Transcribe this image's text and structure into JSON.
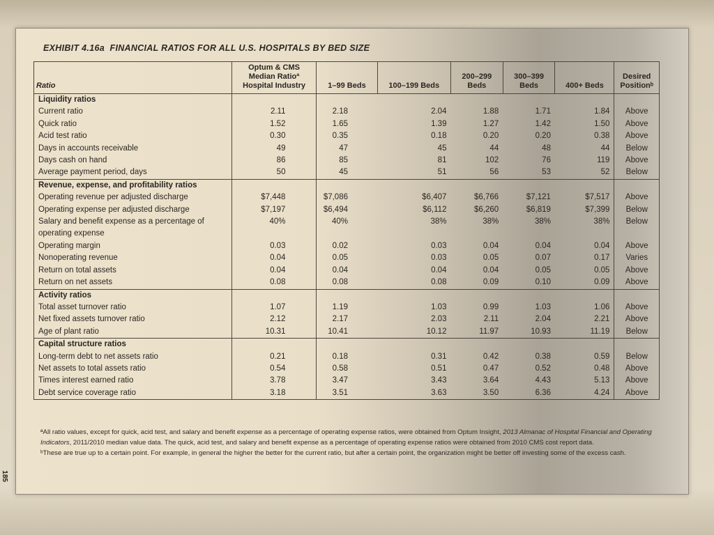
{
  "exhibit": {
    "label": "EXHIBIT 4.16a",
    "title": "FINANCIAL RATIOS FOR ALL U.S. HOSPITALS BY BED SIZE"
  },
  "columns": {
    "ratio": "Ratio",
    "optum": "Optum & CMS Median Ratioª Hospital Industry",
    "c1": "1–99 Beds",
    "c2": "100–199 Beds",
    "c3": "200–299 Beds",
    "c4": "300–399 Beds",
    "c5": "400+ Beds",
    "desired": "Desired Positionᵇ"
  },
  "sections": [
    {
      "title": "Liquidity ratios",
      "rows": [
        {
          "label": "Current ratio",
          "values": [
            "2.11",
            "2.18",
            "2.04",
            "1.88",
            "1.71",
            "1.84"
          ],
          "desired": "Above"
        },
        {
          "label": "Quick ratio",
          "values": [
            "1.52",
            "1.65",
            "1.39",
            "1.27",
            "1.42",
            "1.50"
          ],
          "desired": "Above"
        },
        {
          "label": "Acid test ratio",
          "values": [
            "0.30",
            "0.35",
            "0.18",
            "0.20",
            "0.20",
            "0.38"
          ],
          "desired": "Above"
        },
        {
          "label": "Days in accounts receivable",
          "values": [
            "49",
            "47",
            "45",
            "44",
            "48",
            "44"
          ],
          "desired": "Below"
        },
        {
          "label": "Days cash on hand",
          "values": [
            "86",
            "85",
            "81",
            "102",
            "76",
            "119"
          ],
          "desired": "Above"
        },
        {
          "label": "Average payment period, days",
          "values": [
            "50",
            "45",
            "51",
            "56",
            "53",
            "52"
          ],
          "desired": "Below"
        }
      ]
    },
    {
      "title": "Revenue, expense, and profitability ratios",
      "rows": [
        {
          "label": "Operating revenue per adjusted discharge",
          "values": [
            "$7,448",
            "$7,086",
            "$6,407",
            "$6,766",
            "$7,121",
            "$7,517"
          ],
          "desired": "Above"
        },
        {
          "label": "Operating expense per adjusted discharge",
          "values": [
            "$7,197",
            "$6,494",
            "$6,112",
            "$6,260",
            "$6,819",
            "$7,399"
          ],
          "desired": "Below"
        },
        {
          "label": "Salary and benefit expense as a percentage of operating expense",
          "values": [
            "40%",
            "40%",
            "38%",
            "38%",
            "38%",
            "38%"
          ],
          "desired": "Below"
        },
        {
          "label": "Operating margin",
          "values": [
            "0.03",
            "0.02",
            "0.03",
            "0.04",
            "0.04",
            "0.04"
          ],
          "desired": "Above"
        },
        {
          "label": "Nonoperating revenue",
          "values": [
            "0.04",
            "0.05",
            "0.03",
            "0.05",
            "0.07",
            "0.17"
          ],
          "desired": "Varies"
        },
        {
          "label": "Return on total assets",
          "values": [
            "0.04",
            "0.04",
            "0.04",
            "0.04",
            "0.05",
            "0.05"
          ],
          "desired": "Above"
        },
        {
          "label": "Return on net assets",
          "values": [
            "0.08",
            "0.08",
            "0.08",
            "0.09",
            "0.10",
            "0.09"
          ],
          "desired": "Above"
        }
      ]
    },
    {
      "title": "Activity ratios",
      "rows": [
        {
          "label": "Total asset turnover ratio",
          "values": [
            "1.07",
            "1.19",
            "1.03",
            "0.99",
            "1.03",
            "1.06"
          ],
          "desired": "Above"
        },
        {
          "label": "Net fixed assets turnover ratio",
          "values": [
            "2.12",
            "2.17",
            "2.03",
            "2.11",
            "2.04",
            "2.21"
          ],
          "desired": "Above"
        },
        {
          "label": "Age of plant ratio",
          "values": [
            "10.31",
            "10.41",
            "10.12",
            "11.97",
            "10.93",
            "11.19"
          ],
          "desired": "Below"
        }
      ]
    },
    {
      "title": "Capital structure ratios",
      "rows": [
        {
          "label": "Long-term debt to net assets ratio",
          "values": [
            "0.21",
            "0.18",
            "0.31",
            "0.42",
            "0.38",
            "0.59"
          ],
          "desired": "Below"
        },
        {
          "label": "Net assets to total assets ratio",
          "values": [
            "0.54",
            "0.58",
            "0.51",
            "0.47",
            "0.52",
            "0.48"
          ],
          "desired": "Above"
        },
        {
          "label": "Times interest earned ratio",
          "values": [
            "3.78",
            "3.47",
            "3.43",
            "3.64",
            "4.43",
            "5.13"
          ],
          "desired": "Above"
        },
        {
          "label": "Debt service coverage ratio",
          "values": [
            "3.18",
            "3.51",
            "3.63",
            "3.50",
            "6.36",
            "4.24"
          ],
          "desired": "Above"
        }
      ]
    }
  ],
  "footnotes": {
    "a_pre": "ªAll ratio values, except for quick, acid test, and salary and benefit expense as a percentage of operating expense ratios, were obtained from Optum Insight, ",
    "a_source": "2013 Almanac of Hospital Financial and Operating Indicators",
    "a_post": ", 2011/2010 median value data. The quick, acid test, and salary and benefit expense as a percentage of operating expense ratios were obtained from 2010 CMS cost report data.",
    "b": "ᵇThese are true up to a certain point. For example, in general the higher the better for the current ratio, but after a certain point, the organization might be better off investing some of the excess cash."
  },
  "page_number": "185"
}
